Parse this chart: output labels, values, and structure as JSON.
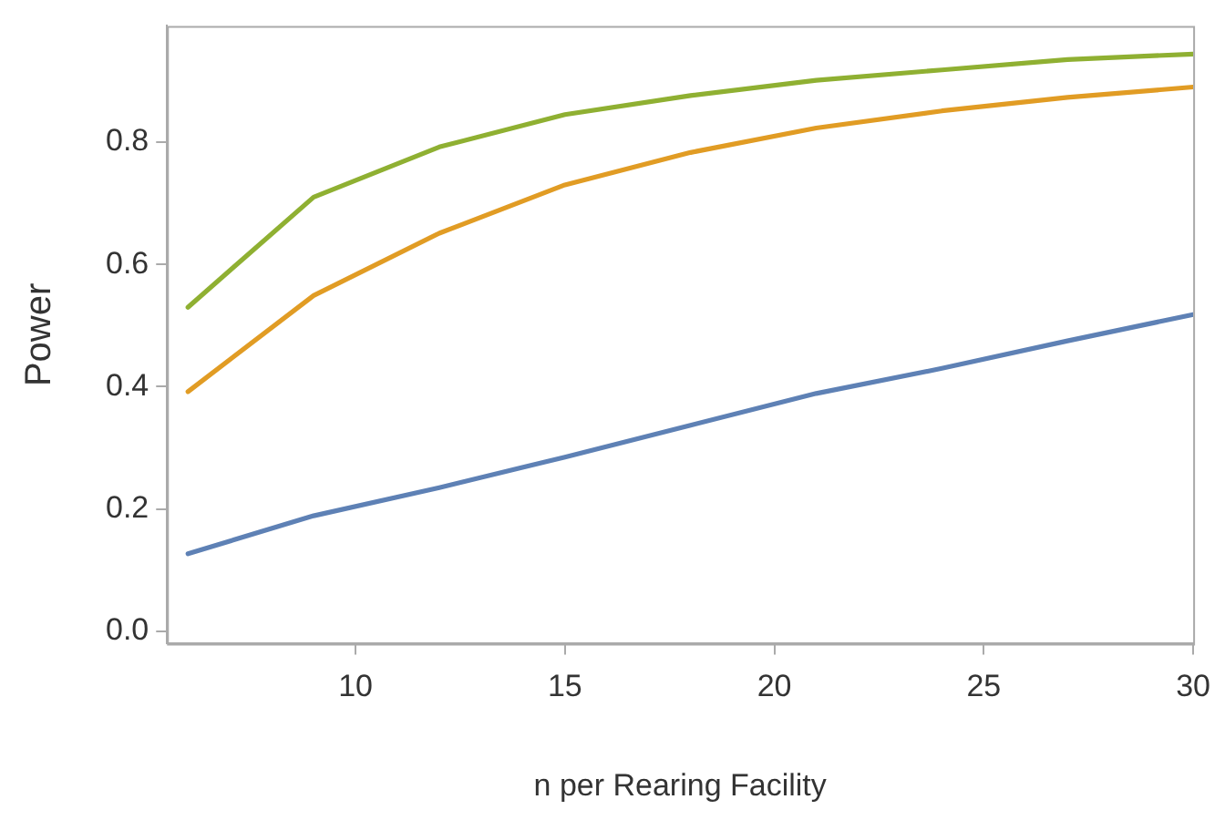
{
  "chart_data": {
    "type": "line",
    "xlabel": "n per Rearing Facility",
    "ylabel": "Power",
    "x": [
      6,
      9,
      12,
      15,
      18,
      21,
      24,
      27,
      30
    ],
    "series": [
      {
        "color": "#5e81b5",
        "values": [
          0.127,
          0.189,
          0.235,
          0.285,
          0.337,
          0.389,
          0.43,
          0.475,
          0.518
        ]
      },
      {
        "color": "#e19c24",
        "values": [
          0.392,
          0.549,
          0.651,
          0.73,
          0.783,
          0.823,
          0.851,
          0.873,
          0.89
        ]
      },
      {
        "color": "#8fb032",
        "values": [
          0.53,
          0.71,
          0.792,
          0.845,
          0.876,
          0.901,
          0.918,
          0.935,
          0.944
        ]
      }
    ],
    "xlim": [
      5.5,
      30
    ],
    "xticks": [
      10,
      15,
      20,
      25,
      30
    ],
    "ylim": [
      -0.02,
      0.99
    ],
    "yticks": [
      {
        "value": 0,
        "label": "0.0"
      },
      0.2,
      0.4,
      0.6,
      0.8
    ],
    "grid": false,
    "legend": false,
    "marker": "none",
    "line_style": "solid"
  }
}
